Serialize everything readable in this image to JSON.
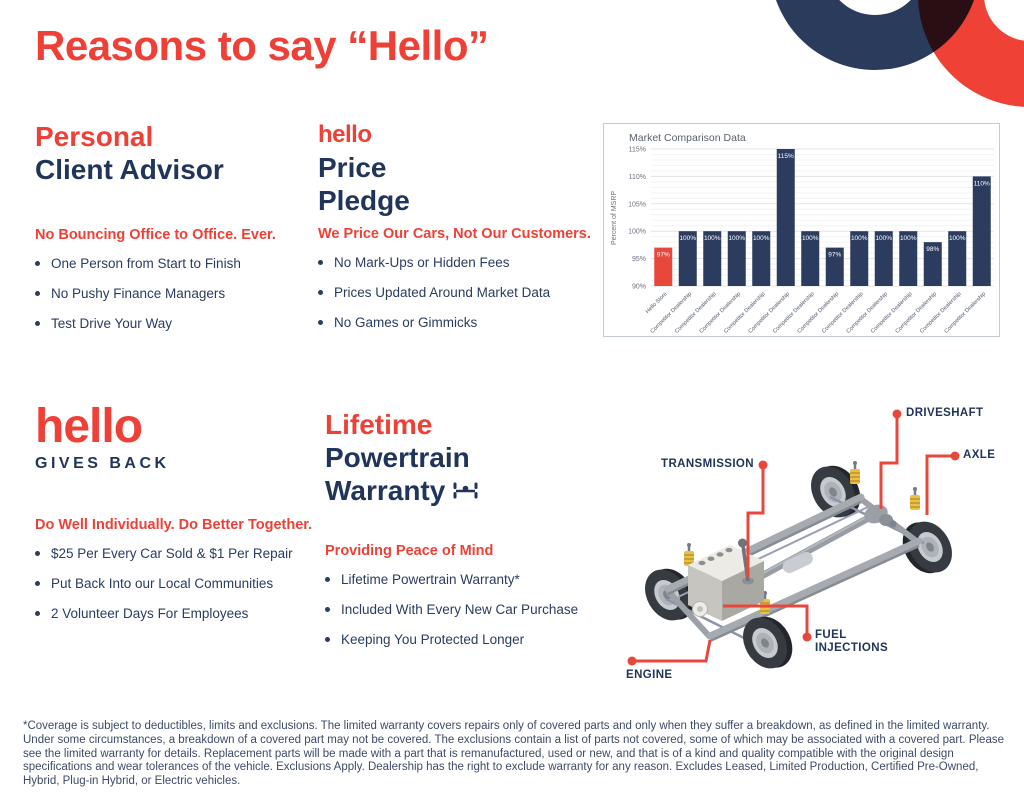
{
  "page": {
    "title": "Reasons to say “Hello”",
    "background": "#FFFFFF",
    "accent_red": "#EE4036",
    "navy": "#21355B"
  },
  "sections": [
    {
      "id": "personal-client-advisor",
      "heading_line1": "Personal",
      "heading_line2": "Client Advisor",
      "subheading": "No Bouncing Office to Office. Ever.",
      "bullets": [
        "One Person from Start to Finish",
        "No Pushy Finance Managers",
        "Test Drive Your Way"
      ]
    },
    {
      "id": "price-pledge",
      "heading_line1": "hello",
      "heading_line2": "Price",
      "heading_line3": "Pledge",
      "subheading": "We Price Our Cars, Not Our Customers.",
      "bullets": [
        "No Mark-Ups or Hidden Fees",
        "Prices Updated Around Market Data",
        "No Games or Gimmicks"
      ]
    },
    {
      "id": "hello-gives-back",
      "logo_text": "hello",
      "logo_sub": "GIVES BACK",
      "subheading": "Do Well Individually. Do Better Together.",
      "bullets": [
        "$25 Per Every Car Sold & $1 Per Repair",
        "Put Back Into our Local Communities",
        "2 Volunteer Days For Employees"
      ]
    },
    {
      "id": "lifetime-powertrain-warranty",
      "heading_line1": "Lifetime",
      "heading_line2": "Powertrain",
      "heading_line3": "Warranty",
      "subheading": "Providing Peace of Mind",
      "bullets": [
        "Lifetime Powertrain Warranty*",
        "Included With Every New Car Purchase",
        "Keeping You Protected Longer"
      ]
    }
  ],
  "chart_data": {
    "type": "bar",
    "title": "Market Comparison Data",
    "xlabel": "",
    "ylabel": "Percent of MSRP",
    "ylim": [
      90,
      115
    ],
    "yticks": [
      90,
      95,
      100,
      105,
      110,
      115
    ],
    "grid": true,
    "legend": false,
    "categories": [
      "Hello Store",
      "Competitor Dealership",
      "Competitor Dealership",
      "Competitor Dealership",
      "Competitor Dealership",
      "Competitor Dealership",
      "Competitor Dealership",
      "Competitor Dealership",
      "Competitor Dealership",
      "Competitor Dealership",
      "Competitor Dealership",
      "Competitor Dealership",
      "Competitor Dealership",
      "Competitor Dealership"
    ],
    "values": [
      97,
      100,
      100,
      100,
      100,
      115,
      100,
      97,
      100,
      100,
      100,
      98,
      100,
      110
    ],
    "bar_labels": [
      "97%",
      "100%",
      "100%",
      "100%",
      "100%",
      "115%",
      "100%",
      "97%",
      "100%",
      "100%",
      "100%",
      "98%",
      "100%",
      "110%"
    ],
    "highlight_index": 0,
    "colors": {
      "highlight": "#E8473C",
      "default": "#2C3C5F"
    }
  },
  "diagram": {
    "labels": [
      {
        "id": "driveshaft",
        "text": "DRIVESHAFT"
      },
      {
        "id": "axle",
        "text": "AXLE"
      },
      {
        "id": "transmission",
        "text": "TRANSMISSION"
      },
      {
        "id": "fuel-injections",
        "text": "FUEL INJECTIONS"
      },
      {
        "id": "engine",
        "text": "ENGINE"
      }
    ],
    "callout_color": "#E8473C"
  },
  "fine_print": "*Coverage is subject to deductibles, limits and exclusions. The limited warranty covers repairs only of covered parts and only when they suffer a breakdown, as defined in the limited warranty. Under some circumstances, a breakdown of a covered part may not be covered. The exclusions contain a list of parts not covered, some of which may be associated with a covered part. Please see the limited warranty for details. Replacement parts will be made with a part that is remanufactured, used or new, and that is of a kind and quality compatible with the original design specifications and wear tolerances of the vehicle. Exclusions Apply. Dealership has the right to exclude warranty for any reason. Excludes Leased, Limited Production, Certified Pre-Owned, Hybrid, Plug-in Hybrid, or Electric vehicles."
}
